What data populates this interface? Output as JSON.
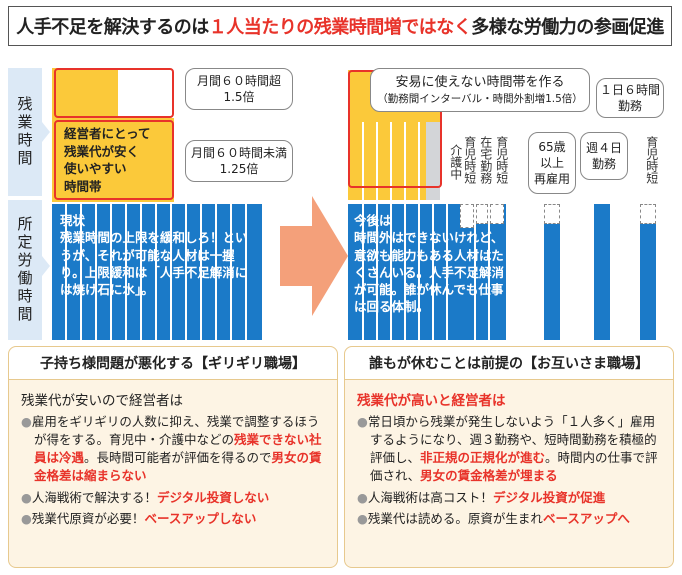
{
  "title": {
    "part1": "人手不足を解決するのは",
    "highlight": "１人当たりの残業時間増ではなく",
    "part2": "多様な労働力の参画促進"
  },
  "row_labels": {
    "overtime": "残業時間",
    "regular": "所定労働時間"
  },
  "left": {
    "callout_top": "月間６０時間超\n1.5倍",
    "callout_mid": "月間６０時間未満\n1.25倍",
    "redbox_text": "経営者にとって\n残業代が安く\n使いやすい\n時間帯",
    "overlay": "現状\n残業時間の上限を緩和しろ！というが、それが可能な人材は一握り。上限緩和は「人手不足解消には焼け石に水」。"
  },
  "right": {
    "callout_top": "安易に使えない時間帯を作る",
    "callout_top_sub": "（勤務間インターバル・時間外割増1.5倍）",
    "overlay": "今後は\n時間外はできないけれど、意欲も能力もある人材はたくさんいる。人手不足解消が可能。誰が休んでも仕事は回る体制。",
    "vlabels": [
      "介護中",
      "育児時短",
      "在宅勤務",
      "育児時短"
    ],
    "box_65": "65歳\n以上\n再雇用",
    "box_week4": "週４日\n勤務",
    "box_day6": "１日６時間\n勤務",
    "vlabel_last": "育児時短"
  },
  "bottom_left": {
    "title": "子持ち様問題が悪化する【ギリギリ職場】",
    "subtitle": "残業代が安いので経営者は",
    "items": [
      {
        "t1": "雇用をギリギリの人数に抑え、残業で調整するほうが得をする。育児中・介護中などの",
        "r1": "残業できない社員は冷遇",
        "t2": "。長時間可能者が評価を得るので",
        "r2": "男女の賃金格差は縮まらない",
        "t3": ""
      },
      {
        "t1": "人海戦術で解決する！",
        "r1": "デジタル投資しない"
      },
      {
        "t1": "残業代原資が必要！",
        "r1": "ベースアップしない"
      }
    ]
  },
  "bottom_right": {
    "title": "誰もが休むことは前提の【お互いさま職場】",
    "subtitle": "残業代が高いと経営者は",
    "items": [
      {
        "t1": "常日頃から残業が発生しないよう「１人多く」雇用するようになり、週３勤務や、短時間勤務を積極的評価し、",
        "r1": "非正規の正規化が進む",
        "t2": "。時間内の仕事で評価され、",
        "r2": "男女の賃金格差が埋まる",
        "t3": ""
      },
      {
        "t1": "人海戦術は高コスト！",
        "r1": "デジタル投資が促進"
      },
      {
        "t1": "残業代は読める。原資が生まれ",
        "r1": "ベースアップへ"
      }
    ]
  }
}
